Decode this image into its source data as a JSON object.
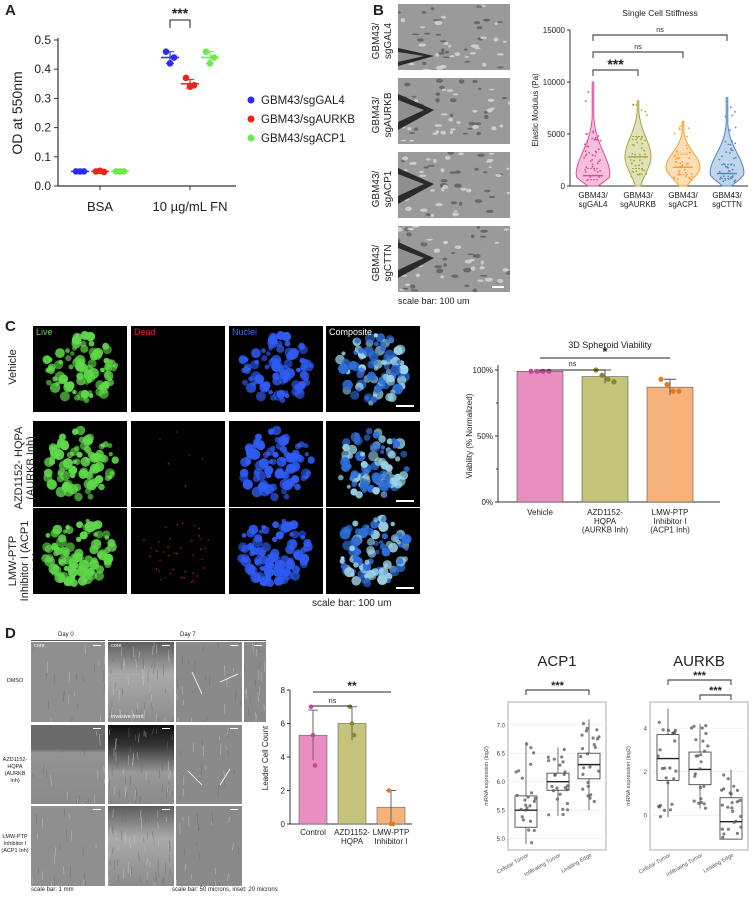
{
  "panels": {
    "A": "A",
    "B": "B",
    "C": "C",
    "D": "D"
  },
  "panelA": {
    "chart_data": {
      "type": "scatter",
      "ylabel": "OD at 550nm",
      "categories": [
        "BSA",
        "10 µg/mL FN"
      ],
      "ylim": [
        0,
        0.5
      ],
      "yticks": [
        "0.0",
        "0.1",
        "0.2",
        "0.3",
        "0.4",
        "0.5"
      ],
      "series": [
        {
          "name": "GBM43/sgGAL4",
          "color": "#2b2bff",
          "points": [
            [
              0.05,
              0.05,
              0.05
            ],
            [
              0.46,
              0.42,
              0.44
            ]
          ],
          "mean": [
            0.05,
            0.44
          ],
          "sd": [
            0.003,
            0.02
          ]
        },
        {
          "name": "GBM43/sgAURKB",
          "color": "#e8251b",
          "points": [
            [
              0.05,
              0.052,
              0.048
            ],
            [
              0.37,
              0.34,
              0.345
            ]
          ],
          "mean": [
            0.05,
            0.35
          ],
          "sd": [
            0.003,
            0.015
          ]
        },
        {
          "name": "GBM43/sgACP1",
          "color": "#6ee84a",
          "points": [
            [
              0.05,
              0.05,
              0.05
            ],
            [
              0.46,
              0.42,
              0.44
            ]
          ],
          "mean": [
            0.05,
            0.44
          ],
          "sd": [
            0.003,
            0.02
          ]
        }
      ],
      "significance": "***"
    }
  },
  "panelB": {
    "images": [
      "GBM43/\nsgGAL4",
      "GBM43/\nsgAURKB",
      "GBM43/\nsgACP1",
      "GBM43/\nsgCTTN"
    ],
    "image_labels": [
      "GBM43/ sgGAL4",
      "GBM43/ sgAURKB",
      "GBM43/ sgACP1",
      "GBM43/ sgCTTN"
    ],
    "scale": "scale bar: 100 um",
    "chart_data": {
      "type": "violin",
      "title": "Single Cell Stiffness",
      "ylabel": "Elastic Modulus (Pa)",
      "ylim": [
        0,
        15000
      ],
      "yticks": [
        "0",
        "5000",
        "10000",
        "15000"
      ],
      "categories": [
        "GBM43/ sgGAL4",
        "GBM43/ sgAURKB",
        "GBM43/ sgACP1",
        "GBM43/ sgCTTN"
      ],
      "colors": [
        "#e04b9a",
        "#a8a83a",
        "#f5a030",
        "#4f86c6"
      ],
      "median": [
        1000,
        2800,
        1800,
        1200
      ],
      "max": [
        10000,
        8200,
        6200,
        8500
      ],
      "significance": [
        "***",
        "ns",
        "ns"
      ]
    }
  },
  "panelC": {
    "columns": [
      "Live",
      "Dead",
      "Nuclei",
      "Composite"
    ],
    "column_colors": [
      "#5fd84a",
      "#e0262b",
      "#3d6cf2",
      "#ffffff"
    ],
    "rows": [
      "Vehicle",
      "AZD1152-\nHQPA\n(AURKB Inh)",
      "LMW-PTP\nInhibitor I\n(ACP1 Inh)"
    ],
    "row_labels": [
      "Vehicle",
      "AZD1152- HQPA (AURKB Inh)",
      "LMW-PTP Inhibitor I (ACP1 Inh)"
    ],
    "scale": "scale bar: 100 um",
    "chart_data": {
      "type": "bar",
      "title": "3D Spheroid Viability",
      "ylabel": "Viability (% Normalized)",
      "categories": [
        "Vehicle",
        "AZD1152-\nHQPA\n(AURKB Inh)",
        "LMW-PTP\nInhibitor I\n(ACP1 Inh)"
      ],
      "values": [
        99,
        95,
        87
      ],
      "errors": [
        1,
        5,
        6
      ],
      "points": [
        [
          99,
          99,
          99,
          99
        ],
        [
          100,
          96,
          93,
          91
        ],
        [
          93,
          89,
          84,
          84
        ]
      ],
      "colors": [
        "#ea8ec2",
        "#c4c47a",
        "#f6b27a"
      ],
      "ylim": [
        0,
        100
      ],
      "yticks": [
        "0%",
        "50%",
        "100%"
      ],
      "significance": [
        "ns",
        "*"
      ]
    }
  },
  "panelD": {
    "day0": "Day 0",
    "day7": "Day 7",
    "core": "core",
    "invasive_front": "invasive front",
    "rows": [
      "DMSO",
      "AZD1152-HQPA\n(AURKB Inh)",
      "LMW-PTP\nInhibitor I\n(ACP1 Inh)"
    ],
    "row_labels": [
      "DMSO",
      "AZD1152-HQPA (AURKB Inh)",
      "LMW-PTP Inhibitor I (ACP1 Inh)"
    ],
    "scale1": "scale bar: 1 mm",
    "scale2": "scale bar: 50 microns, inset: 20 microns",
    "bar": {
      "ylabel": "Leader Cell Count",
      "categories": [
        "Control",
        "AZD1152-\nHQPA",
        "LMW-PTP\nInhibitor I"
      ],
      "values": [
        5.3,
        6.0,
        1.0
      ],
      "errors": [
        1.5,
        1.0,
        1.0
      ],
      "points": [
        [
          7,
          5.3,
          3.5
        ],
        [
          7,
          6,
          5.3
        ],
        [
          2,
          0,
          0
        ]
      ],
      "colors": [
        "#ea8ec2",
        "#c4c47a",
        "#f6b27a"
      ],
      "ylim": [
        0,
        8
      ],
      "yticks": [
        "0",
        "2",
        "4",
        "6",
        "8"
      ],
      "significance": [
        "ns",
        "**"
      ]
    },
    "box_acp1": {
      "title": "ACP1",
      "ylabel": "mRNA expression (log2)",
      "categories": [
        "Cellular Tumor",
        "Infiltrating Tumor",
        "Leading Edge"
      ],
      "ylim": [
        4.8,
        7.4
      ],
      "yticks": [
        "5.0",
        "5.5",
        "6.0",
        "6.5",
        "7.0"
      ],
      "q1": [
        5.2,
        5.85,
        6.05
      ],
      "median": [
        5.5,
        6.0,
        6.3
      ],
      "q3": [
        5.75,
        6.15,
        6.5
      ],
      "lo": [
        4.9,
        5.4,
        5.5
      ],
      "hi": [
        6.7,
        6.6,
        7.1
      ],
      "significance": "***"
    },
    "box_aurkb": {
      "title": "AURKB",
      "ylabel": "mRNA expression (log2)",
      "categories": [
        "Cellular Tumor",
        "Infiltrating Tumor",
        "Leading Edge"
      ],
      "ylim": [
        -1.6,
        5.2
      ],
      "yticks": [
        "0",
        "2",
        "4"
      ],
      "q1": [
        1.6,
        1.4,
        -1.1
      ],
      "median": [
        2.6,
        2.1,
        -0.3
      ],
      "q3": [
        3.7,
        2.9,
        0.8
      ],
      "lo": [
        -0.1,
        0.3,
        -1.1
      ],
      "hi": [
        4.9,
        4.2,
        2.1
      ],
      "significance": [
        "***",
        "***"
      ]
    }
  }
}
